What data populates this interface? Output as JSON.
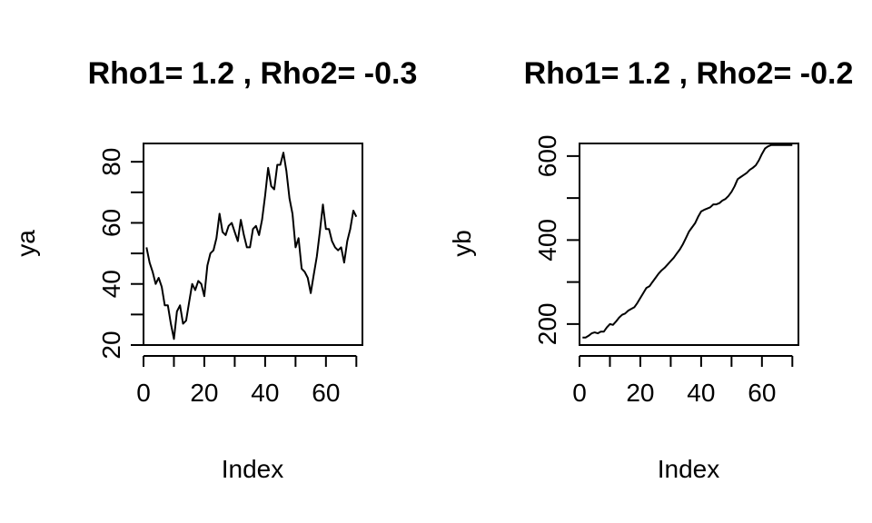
{
  "chart_data": [
    {
      "type": "line",
      "title": "Rho1= 1.2 , Rho2= -0.3",
      "xlabel": "Index",
      "ylabel": "ya",
      "xlim": [
        0,
        72
      ],
      "ylim": [
        20,
        86
      ],
      "xticks": [
        0,
        10,
        20,
        30,
        40,
        50,
        60,
        70
      ],
      "xtick_labels": [
        "0",
        "",
        "20",
        "",
        "40",
        "",
        "60",
        ""
      ],
      "yticks": [
        20,
        30,
        40,
        50,
        60,
        70,
        80
      ],
      "ytick_labels": [
        "20",
        "",
        "40",
        "",
        "60",
        "",
        "80"
      ],
      "series": [
        {
          "x": [
            1,
            2,
            3,
            4,
            5,
            6,
            7,
            8,
            9,
            10,
            11,
            12,
            13,
            14,
            15,
            16,
            17,
            18,
            19,
            20,
            21,
            22,
            23,
            24,
            25,
            26,
            27,
            28,
            29,
            30,
            31,
            32,
            33,
            34,
            35,
            36,
            37,
            38,
            39,
            40,
            41,
            42,
            43,
            44,
            45,
            46,
            47,
            48,
            49,
            50,
            51,
            52,
            53,
            54,
            55,
            56,
            57,
            58,
            59,
            60,
            61,
            62,
            63,
            64,
            65,
            66,
            67,
            68,
            69,
            70
          ],
          "values": [
            52,
            47,
            44,
            40,
            42,
            39,
            33,
            33,
            27,
            22,
            31,
            33,
            27,
            28,
            34,
            40,
            38,
            41,
            40,
            36,
            46,
            50,
            51,
            55,
            63,
            57,
            56,
            59,
            60,
            57,
            54,
            61,
            56,
            52,
            52,
            58,
            59,
            56,
            61,
            69,
            78,
            72,
            71,
            79,
            79,
            83,
            77,
            68,
            63,
            52,
            55,
            45,
            44,
            42,
            37,
            43,
            49,
            57,
            66,
            58,
            58,
            54,
            52,
            51,
            52,
            47,
            54,
            58,
            64,
            62
          ]
        }
      ]
    },
    {
      "type": "line",
      "title": "Rho1= 1.2 , Rho2= -0.2",
      "xlabel": "Index",
      "ylabel": "yb",
      "xlim": [
        0,
        72
      ],
      "ylim": [
        150,
        630
      ],
      "xticks": [
        0,
        10,
        20,
        30,
        40,
        50,
        60,
        70
      ],
      "xtick_labels": [
        "0",
        "",
        "20",
        "",
        "40",
        "",
        "60",
        ""
      ],
      "yticks": [
        200,
        300,
        400,
        500,
        600
      ],
      "ytick_labels": [
        "200",
        "",
        "400",
        "",
        "600"
      ],
      "series": [
        {
          "x": [
            1,
            2,
            3,
            4,
            5,
            6,
            7,
            8,
            9,
            10,
            11,
            12,
            13,
            14,
            15,
            16,
            17,
            18,
            19,
            20,
            21,
            22,
            23,
            24,
            25,
            26,
            27,
            28,
            29,
            30,
            31,
            32,
            33,
            34,
            35,
            36,
            37,
            38,
            39,
            40,
            41,
            42,
            43,
            44,
            45,
            46,
            47,
            48,
            49,
            50,
            51,
            52,
            53,
            54,
            55,
            56,
            57,
            58,
            59,
            60,
            61,
            62,
            63,
            64,
            65,
            66,
            67,
            68,
            69,
            70
          ],
          "values": [
            168,
            168,
            172,
            178,
            180,
            178,
            182,
            182,
            192,
            200,
            198,
            206,
            215,
            222,
            225,
            232,
            236,
            240,
            250,
            262,
            274,
            286,
            290,
            300,
            310,
            320,
            328,
            334,
            342,
            350,
            358,
            368,
            378,
            390,
            405,
            420,
            430,
            440,
            455,
            468,
            472,
            475,
            478,
            485,
            485,
            488,
            494,
            498,
            505,
            515,
            528,
            545,
            550,
            555,
            560,
            567,
            572,
            578,
            590,
            605,
            618,
            623,
            626,
            626,
            626,
            626,
            626,
            626,
            626,
            626
          ]
        }
      ]
    }
  ]
}
